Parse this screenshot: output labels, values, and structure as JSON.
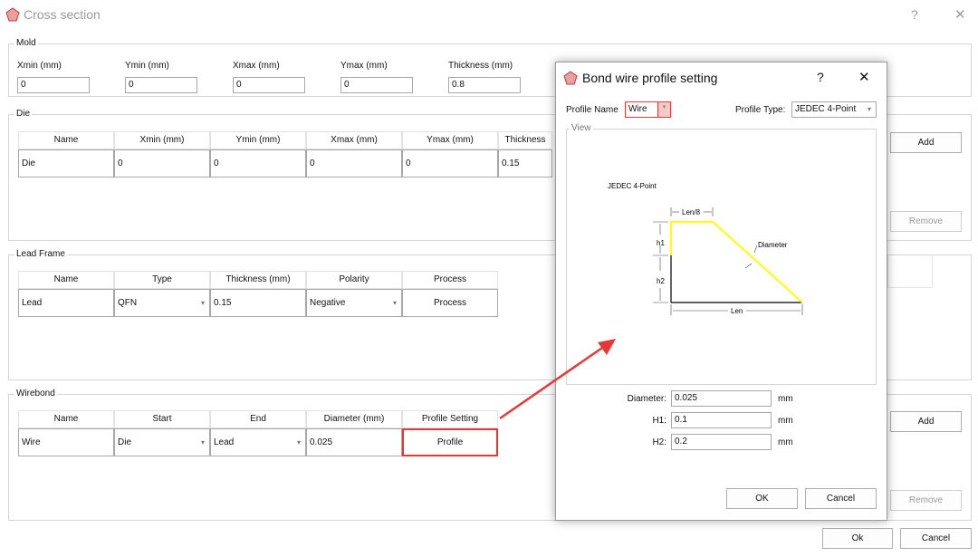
{
  "window": {
    "title": "Cross section",
    "help": "?",
    "close": "✕"
  },
  "mold": {
    "label": "Mold",
    "fields": [
      {
        "label": "Xmin (mm)",
        "value": "0"
      },
      {
        "label": "Ymin (mm)",
        "value": "0"
      },
      {
        "label": "Xmax (mm)",
        "value": "0"
      },
      {
        "label": "Ymax (mm)",
        "value": "0"
      },
      {
        "label": "Thickness (mm)",
        "value": "0.8"
      }
    ]
  },
  "die": {
    "label": "Die",
    "headers": [
      "Name",
      "Xmin (mm)",
      "Ymin (mm)",
      "Xmax (mm)",
      "Ymax (mm)",
      "Thickness"
    ],
    "row": [
      "Die",
      "0",
      "0",
      "0",
      "0",
      "0.15"
    ],
    "add": "Add",
    "remove": "Remove"
  },
  "lead_frame": {
    "label": "Lead Frame",
    "headers": [
      "Name",
      "Type",
      "Thickness (mm)",
      "Polarity",
      "Process"
    ],
    "row": [
      "Lead",
      "QFN",
      "0.15",
      "Negative",
      "Process"
    ]
  },
  "wirebond": {
    "label": "Wirebond",
    "headers": [
      "Name",
      "Start",
      "End",
      "Diameter (mm)",
      "Profile Setting"
    ],
    "row": [
      "Wire",
      "Die",
      "Lead",
      "0.025",
      "Profile"
    ],
    "add": "Add",
    "remove": "Remove"
  },
  "footer": {
    "ok": "Ok",
    "cancel": "Cancel"
  },
  "dialog": {
    "title": "Bond wire profile setting",
    "help": "?",
    "close": "✕",
    "profile_name_label": "Profile Name",
    "profile_name": "Wire",
    "profile_type_label": "Profile Type:",
    "profile_type": "JEDEC 4-Point",
    "view_label": "View",
    "diagram": {
      "title": "JEDEC 4-Point",
      "len8": "Len/8",
      "h1": "h1",
      "h2": "h2",
      "len": "Len",
      "diameter": "Diameter",
      "wire_color": "#ffff00"
    },
    "fields": [
      {
        "label": "Diameter:",
        "value": "0.025",
        "unit": "mm"
      },
      {
        "label": "H1:",
        "value": "0.1",
        "unit": "mm"
      },
      {
        "label": "H2:",
        "value": "0.2",
        "unit": "mm"
      }
    ],
    "ok": "OK",
    "cancel": "Cancel"
  },
  "colors": {
    "highlight": "#e53935"
  }
}
